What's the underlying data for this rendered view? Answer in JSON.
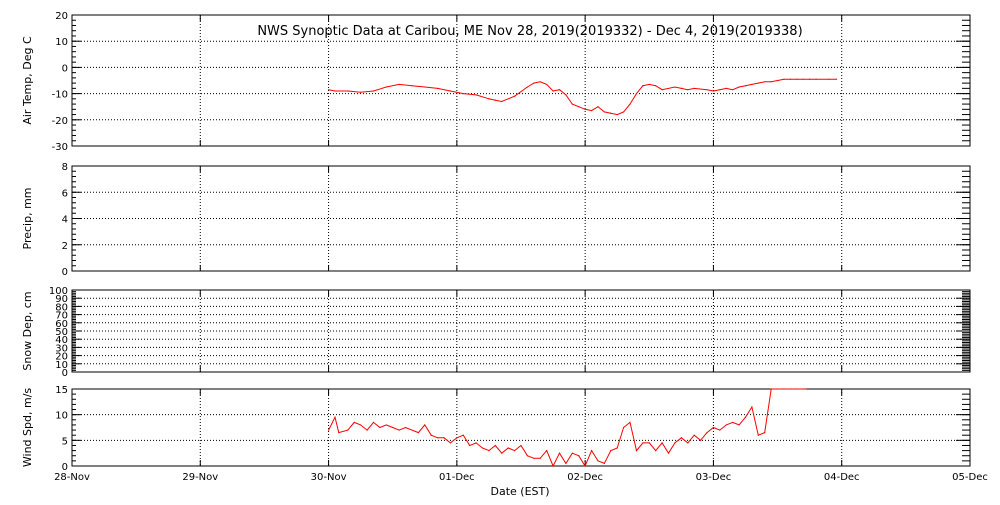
{
  "title": "NWS Synoptic Data at Caribou, ME   Nov 28, 2019(2019332) - Dec  4, 2019(2019338)",
  "xlabel": "Date (EST)",
  "x_tick_labels": [
    "28-Nov",
    "29-Nov",
    "30-Nov",
    "01-Dec",
    "02-Dec",
    "03-Dec",
    "04-Dec",
    "05-Dec"
  ],
  "colors": {
    "series": "#ff0000",
    "axis": "#000000",
    "grid": "#000000",
    "background": "#ffffff"
  },
  "chart_data": [
    {
      "type": "line",
      "ylabel": "Air Temp, Deg C",
      "ylim": [
        -30,
        20
      ],
      "yticks": [
        -30,
        -20,
        -10,
        0,
        10,
        20
      ],
      "xlim": [
        0,
        7
      ],
      "grid": true,
      "x": [
        2.0,
        2.05,
        2.15,
        2.25,
        2.35,
        2.45,
        2.55,
        2.65,
        2.75,
        2.85,
        2.95,
        3.05,
        3.15,
        3.25,
        3.3,
        3.35,
        3.45,
        3.55,
        3.6,
        3.65,
        3.7,
        3.75,
        3.8,
        3.85,
        3.9,
        3.95,
        4.0,
        4.05,
        4.1,
        4.15,
        4.2,
        4.25,
        4.3,
        4.35,
        4.4,
        4.45,
        4.5,
        4.55,
        4.6,
        4.7,
        4.75,
        4.8,
        4.85,
        4.95,
        5.0,
        5.05,
        5.1,
        5.15,
        5.2,
        5.25,
        5.3,
        5.35,
        5.4,
        5.45,
        5.5,
        5.55,
        5.6,
        5.65,
        5.7,
        5.75,
        5.8,
        5.9,
        5.96
      ],
      "values": [
        -8.5,
        -9,
        -9,
        -9.5,
        -9,
        -7.5,
        -6.5,
        -7,
        -7.5,
        -8,
        -9,
        -10,
        -10.5,
        -12,
        -12.5,
        -13,
        -11,
        -7.5,
        -6,
        -5.5,
        -6.5,
        -9,
        -8.5,
        -10.5,
        -14,
        -15,
        -16,
        -16.5,
        -15,
        -17,
        -17.5,
        -18,
        -17,
        -14,
        -10,
        -7,
        -6.5,
        -7,
        -8.5,
        -7.5,
        -8,
        -8.5,
        -8,
        -8.5,
        -9,
        -8.5,
        -8,
        -8.5,
        -7.5,
        -7,
        -6.5,
        -6,
        -5.5,
        -5.5,
        -5,
        -4.5,
        -4.5,
        -4.5,
        -4.5,
        -4.5,
        -4.5,
        -4.5,
        -4.5
      ]
    },
    {
      "type": "line",
      "ylabel": "Precip, mm",
      "ylim": [
        0,
        8
      ],
      "yticks": [
        0,
        2,
        4,
        6,
        8
      ],
      "xlim": [
        0,
        7
      ],
      "grid": true,
      "x": [],
      "values": []
    },
    {
      "type": "line",
      "ylabel": "Snow Dep, cm",
      "ylim": [
        0,
        100
      ],
      "yticks": [
        0,
        10,
        20,
        30,
        40,
        50,
        60,
        70,
        80,
        90,
        100
      ],
      "xlim": [
        0,
        7
      ],
      "grid": true,
      "x": [],
      "values": []
    },
    {
      "type": "line",
      "ylabel": "Wind Spd, m/s",
      "ylim": [
        0,
        15
      ],
      "yticks": [
        0,
        5,
        10,
        15
      ],
      "xlim": [
        0,
        7
      ],
      "grid": true,
      "x": [
        2.0,
        2.05,
        2.08,
        2.15,
        2.2,
        2.25,
        2.3,
        2.35,
        2.4,
        2.45,
        2.5,
        2.55,
        2.6,
        2.7,
        2.75,
        2.8,
        2.85,
        2.9,
        2.95,
        3.0,
        3.05,
        3.1,
        3.15,
        3.2,
        3.25,
        3.3,
        3.35,
        3.4,
        3.45,
        3.5,
        3.55,
        3.6,
        3.65,
        3.7,
        3.75,
        3.8,
        3.85,
        3.9,
        3.95,
        4.0,
        4.05,
        4.1,
        4.15,
        4.2,
        4.25,
        4.3,
        4.35,
        4.4,
        4.45,
        4.5,
        4.55,
        4.6,
        4.65,
        4.7,
        4.75,
        4.8,
        4.85,
        4.9,
        4.95,
        5.0,
        5.05,
        5.1,
        5.15,
        5.2,
        5.25,
        5.3,
        5.35,
        5.4,
        5.45,
        5.5,
        5.55,
        5.6,
        5.65,
        5.7,
        5.72
      ],
      "values": [
        7,
        9.5,
        6.5,
        7,
        8.5,
        8,
        7,
        8.5,
        7.5,
        8,
        7.5,
        7,
        7.5,
        6.5,
        8,
        6,
        5.5,
        5.5,
        4.5,
        5.5,
        6,
        4,
        4.5,
        3.5,
        3,
        4,
        2.5,
        3.5,
        3,
        4,
        2,
        1.5,
        1.5,
        3,
        0,
        2.5,
        0.5,
        2.5,
        2,
        0,
        3,
        1,
        0.5,
        3,
        3.5,
        7.5,
        8.5,
        3,
        4.5,
        4.5,
        3,
        4.5,
        2.5,
        4.5,
        5.5,
        4.5,
        6,
        5,
        6.5,
        7.5,
        7,
        8,
        8.5,
        8,
        9.5,
        11.5,
        6,
        6.5,
        15,
        15,
        15,
        15,
        15,
        15,
        15
      ]
    }
  ]
}
